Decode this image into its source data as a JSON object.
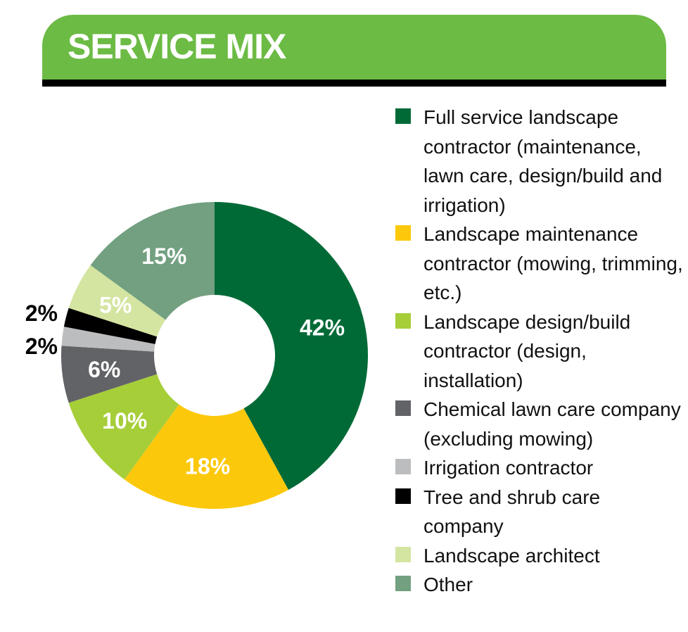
{
  "header": {
    "title": "SERVICE MIX"
  },
  "colors": {
    "banner": "#6cbb44",
    "full_service": "#006a37",
    "maintenance": "#fcc80c",
    "design_build": "#a6ce39",
    "chemical": "#626366",
    "irrigation": "#bcbdbf",
    "tree_shrub": "#000000",
    "architect": "#d4e5a1",
    "other": "#72a080"
  },
  "chart_data": {
    "type": "pie",
    "title": "SERVICE MIX",
    "donut": true,
    "unit": "%",
    "slices": [
      {
        "label": "Full service landscape contractor (maintenance, lawn care, design/build and irrigation)",
        "value": 42,
        "display": "42%",
        "color": "#006a37",
        "label_position": "inside"
      },
      {
        "label": "Landscape maintenance contractor (mowing, trimming, etc.)",
        "value": 18,
        "display": "18%",
        "color": "#fcc80c",
        "label_position": "inside"
      },
      {
        "label": "Landscape design/build contractor (design, installation)",
        "value": 10,
        "display": "10%",
        "color": "#a6ce39",
        "label_position": "inside"
      },
      {
        "label": "Chemical lawn care company (excluding mowing)",
        "value": 6,
        "display": "6%",
        "color": "#626366",
        "label_position": "inside"
      },
      {
        "label": "Irrigation contractor",
        "value": 2,
        "display": "2%",
        "color": "#bcbdbf",
        "label_position": "outside"
      },
      {
        "label": "Tree and shrub care company",
        "value": 2,
        "display": "2%",
        "color": "#000000",
        "label_position": "outside"
      },
      {
        "label": "Landscape architect",
        "value": 5,
        "display": "5%",
        "color": "#d4e5a1",
        "label_position": "inside"
      },
      {
        "label": "Other",
        "value": 15,
        "display": "15%",
        "color": "#72a080",
        "label_position": "inside"
      }
    ],
    "legend_position": "right"
  }
}
